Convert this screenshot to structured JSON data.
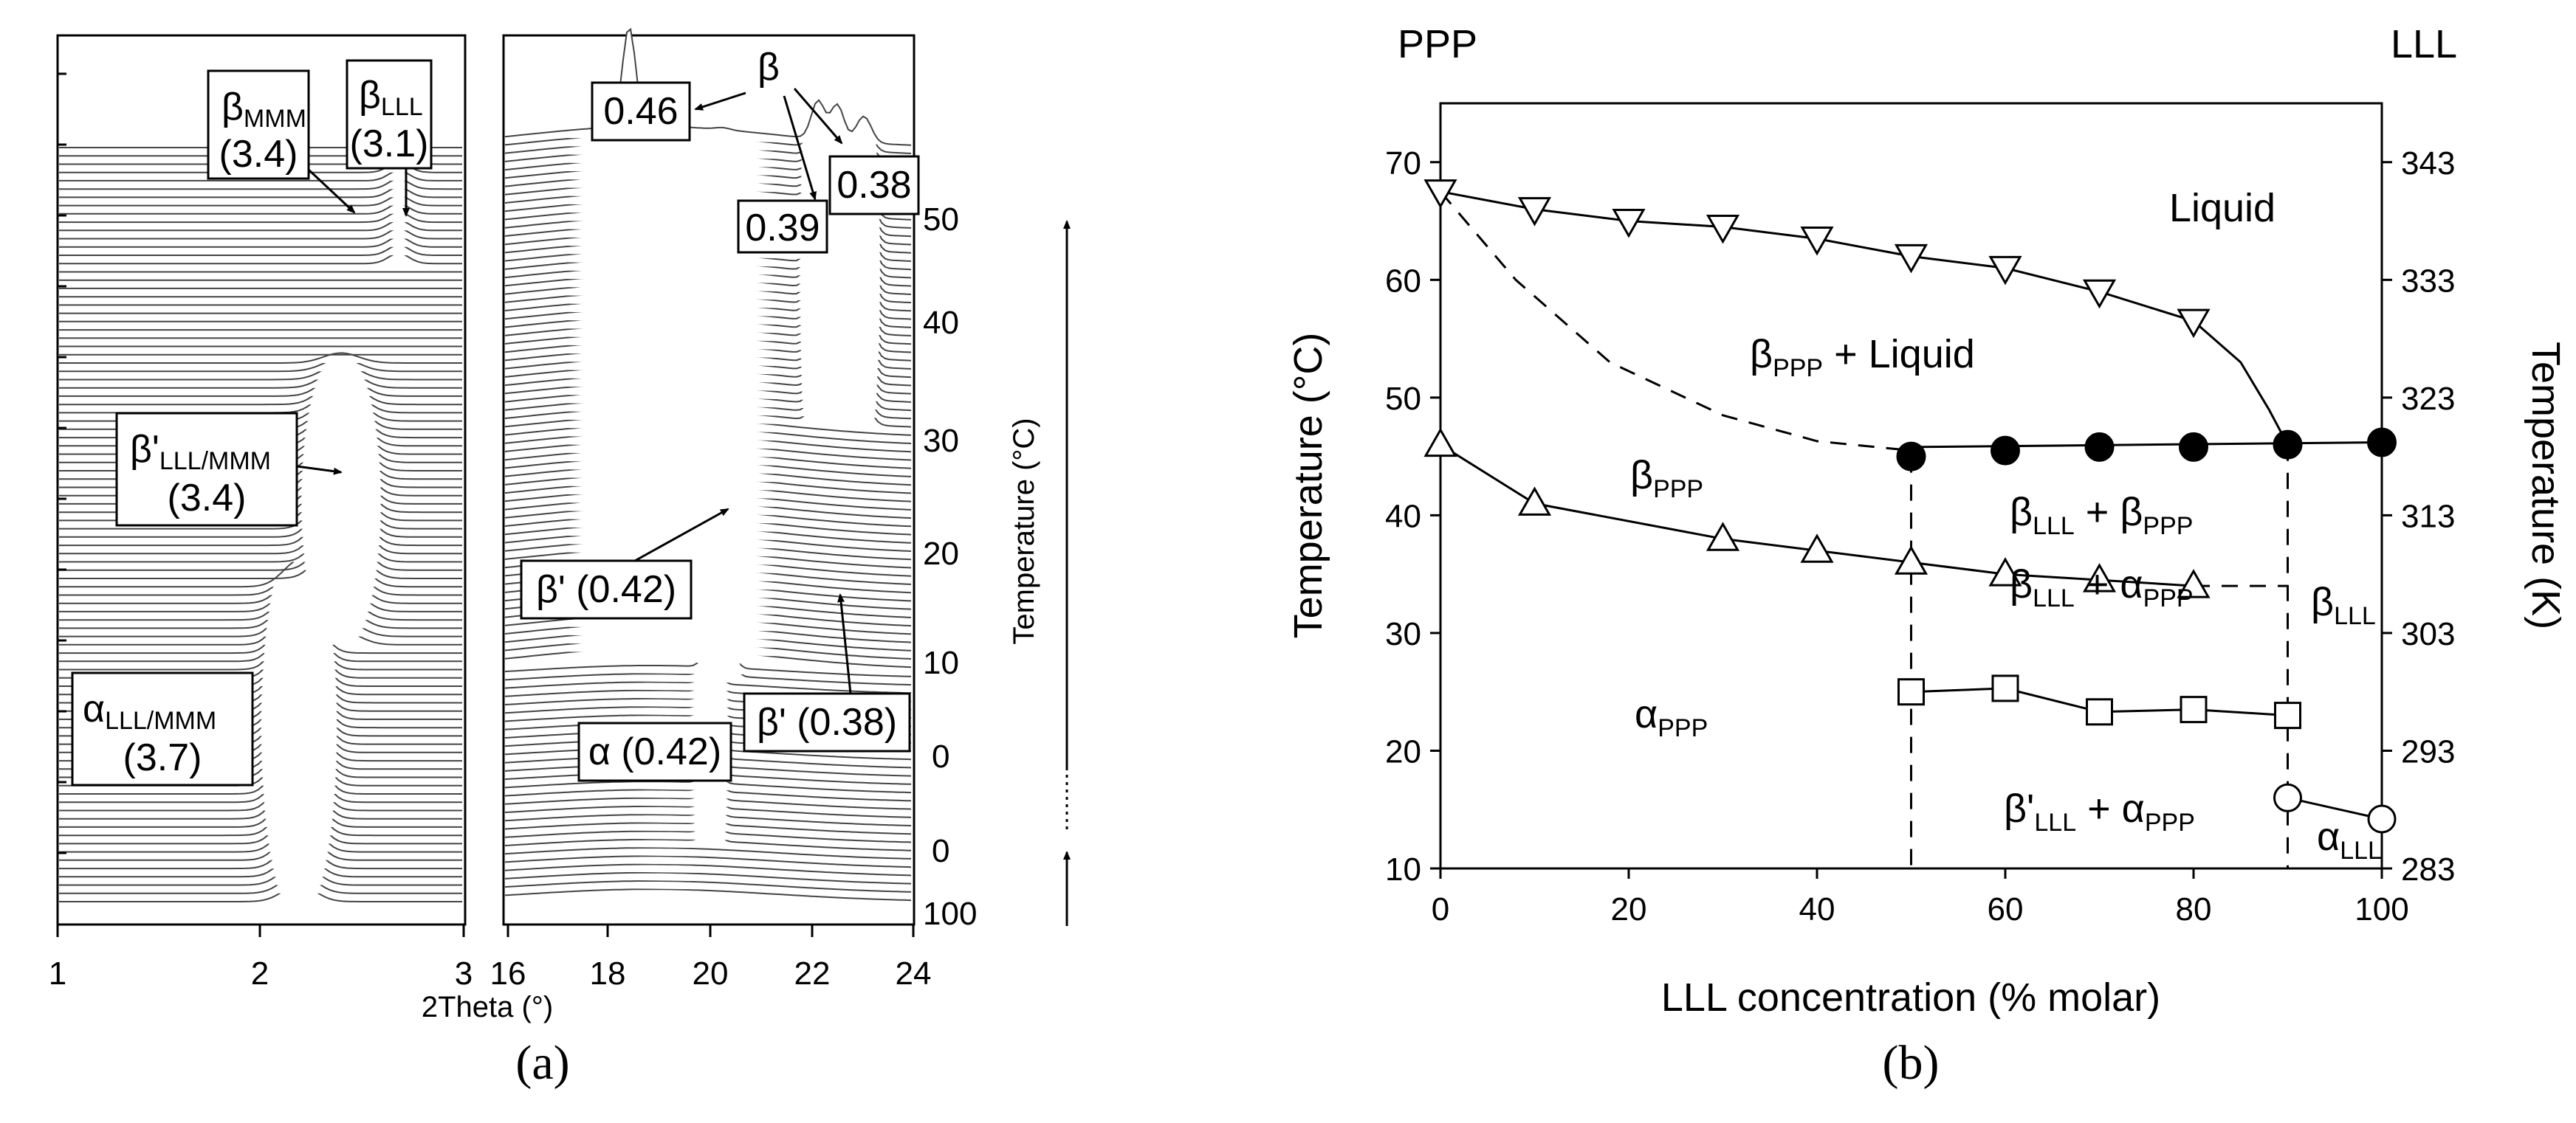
{
  "chart_data": [
    {
      "panel": "(a)",
      "type": "line",
      "title": "",
      "xlabel": "2Theta (°)",
      "ylabel": "Temperature (°C)",
      "left_window": {
        "xlim": [
          1,
          3
        ],
        "ticks": [
          "1",
          "2",
          "3"
        ]
      },
      "right_window": {
        "xlim": [
          16,
          24
        ],
        "ticks": [
          "16",
          "18",
          "20",
          "22",
          "24"
        ]
      },
      "temperature_ticks": [
        "100",
        "0",
        "0",
        "10",
        "20",
        "30",
        "40",
        "50"
      ],
      "annotations": {
        "beta_mmm": {
          "symbol": "β",
          "sub": "MMM",
          "value": "(3.4)"
        },
        "beta_lll": {
          "symbol": "β",
          "sub": "LLL",
          "value": "(3.1)"
        },
        "betap_lll_mmm": {
          "symbol": "β'",
          "sub": "LLL/MMM",
          "value": "(3.4)"
        },
        "alpha_lll_mmm": {
          "symbol": "α",
          "sub": "LLL/MMM",
          "value": "(3.7)"
        },
        "v046": "0.46",
        "v039": "0.39",
        "v038": "0.38",
        "beta": "β",
        "betap042": "β' (0.42)",
        "alpha042": "α (0.42)",
        "betap038": "β' (0.38)"
      }
    },
    {
      "panel": "(b)",
      "type": "scatter",
      "title": "",
      "xlabel": "LLL concentration (% molar)",
      "ylabel": "Temperature (°C)",
      "ylabel_right": "Temperature (K)",
      "xlim": [
        0,
        100
      ],
      "ylim": [
        10,
        75
      ],
      "xticks": [
        0,
        20,
        40,
        60,
        80,
        100
      ],
      "yticks": [
        10,
        20,
        30,
        40,
        50,
        60,
        70
      ],
      "yticks_right": [
        {
          "c": 10,
          "label": "283"
        },
        {
          "c": 20,
          "label": "293"
        },
        {
          "c": 30,
          "label": "303"
        },
        {
          "c": 40,
          "label": "313"
        },
        {
          "c": 50,
          "label": "323"
        },
        {
          "c": 60,
          "label": "333"
        },
        {
          "c": 70,
          "label": "343"
        }
      ],
      "corner_labels": {
        "left": "PPP",
        "right": "LLL"
      },
      "series": [
        {
          "name": "liquidus",
          "marker": "triangle-down",
          "x": [
            0,
            10,
            20,
            30,
            40,
            50,
            60,
            70,
            80
          ],
          "y": [
            67.5,
            66,
            65,
            64.5,
            63.5,
            62,
            61,
            59,
            56.5
          ]
        },
        {
          "name": "beta LLL melting",
          "marker": "filled-circle",
          "x": [
            50,
            60,
            70,
            80,
            90,
            100
          ],
          "y": [
            45,
            45.5,
            45.8,
            45.8,
            46,
            46.2
          ]
        },
        {
          "name": "beta PPP",
          "marker": "triangle-up",
          "x": [
            0,
            10,
            30,
            40,
            50,
            60,
            70,
            80
          ],
          "y": [
            46,
            41,
            38,
            37,
            36,
            35,
            34.5,
            34
          ]
        },
        {
          "name": "alpha PPP",
          "marker": "square",
          "x": [
            50,
            60,
            70,
            80,
            90
          ],
          "y": [
            25,
            25.3,
            23.3,
            23.5,
            23
          ]
        },
        {
          "name": "alpha LLL",
          "marker": "open-circle",
          "x": [
            90,
            100
          ],
          "y": [
            16,
            14.2
          ]
        }
      ],
      "region_labels": {
        "liquid": "Liquid",
        "beta_ppp_liquid": {
          "symbol": "β",
          "sub": "PPP",
          "rest": " + Liquid"
        },
        "beta_ppp": {
          "symbol": "β",
          "sub": "PPP"
        },
        "beta_lll_beta_ppp": {
          "a": "β",
          "asub": "LLL",
          "mid": " + β",
          "bsub": "PPP"
        },
        "beta_lll_alpha_ppp": {
          "a": "β",
          "asub": "LLL",
          "mid": " + α",
          "bsub": "PPP"
        },
        "beta_lll": {
          "symbol": "β",
          "sub": "LLL"
        },
        "alpha_ppp": {
          "symbol": "α",
          "sub": "PPP"
        },
        "betap_lll_alpha_ppp": {
          "a": "β'",
          "asub": "LLL",
          "mid": " + α",
          "bsub": "PPP"
        },
        "alpha_lll": {
          "symbol": "α",
          "sub": "LLL"
        }
      }
    }
  ]
}
